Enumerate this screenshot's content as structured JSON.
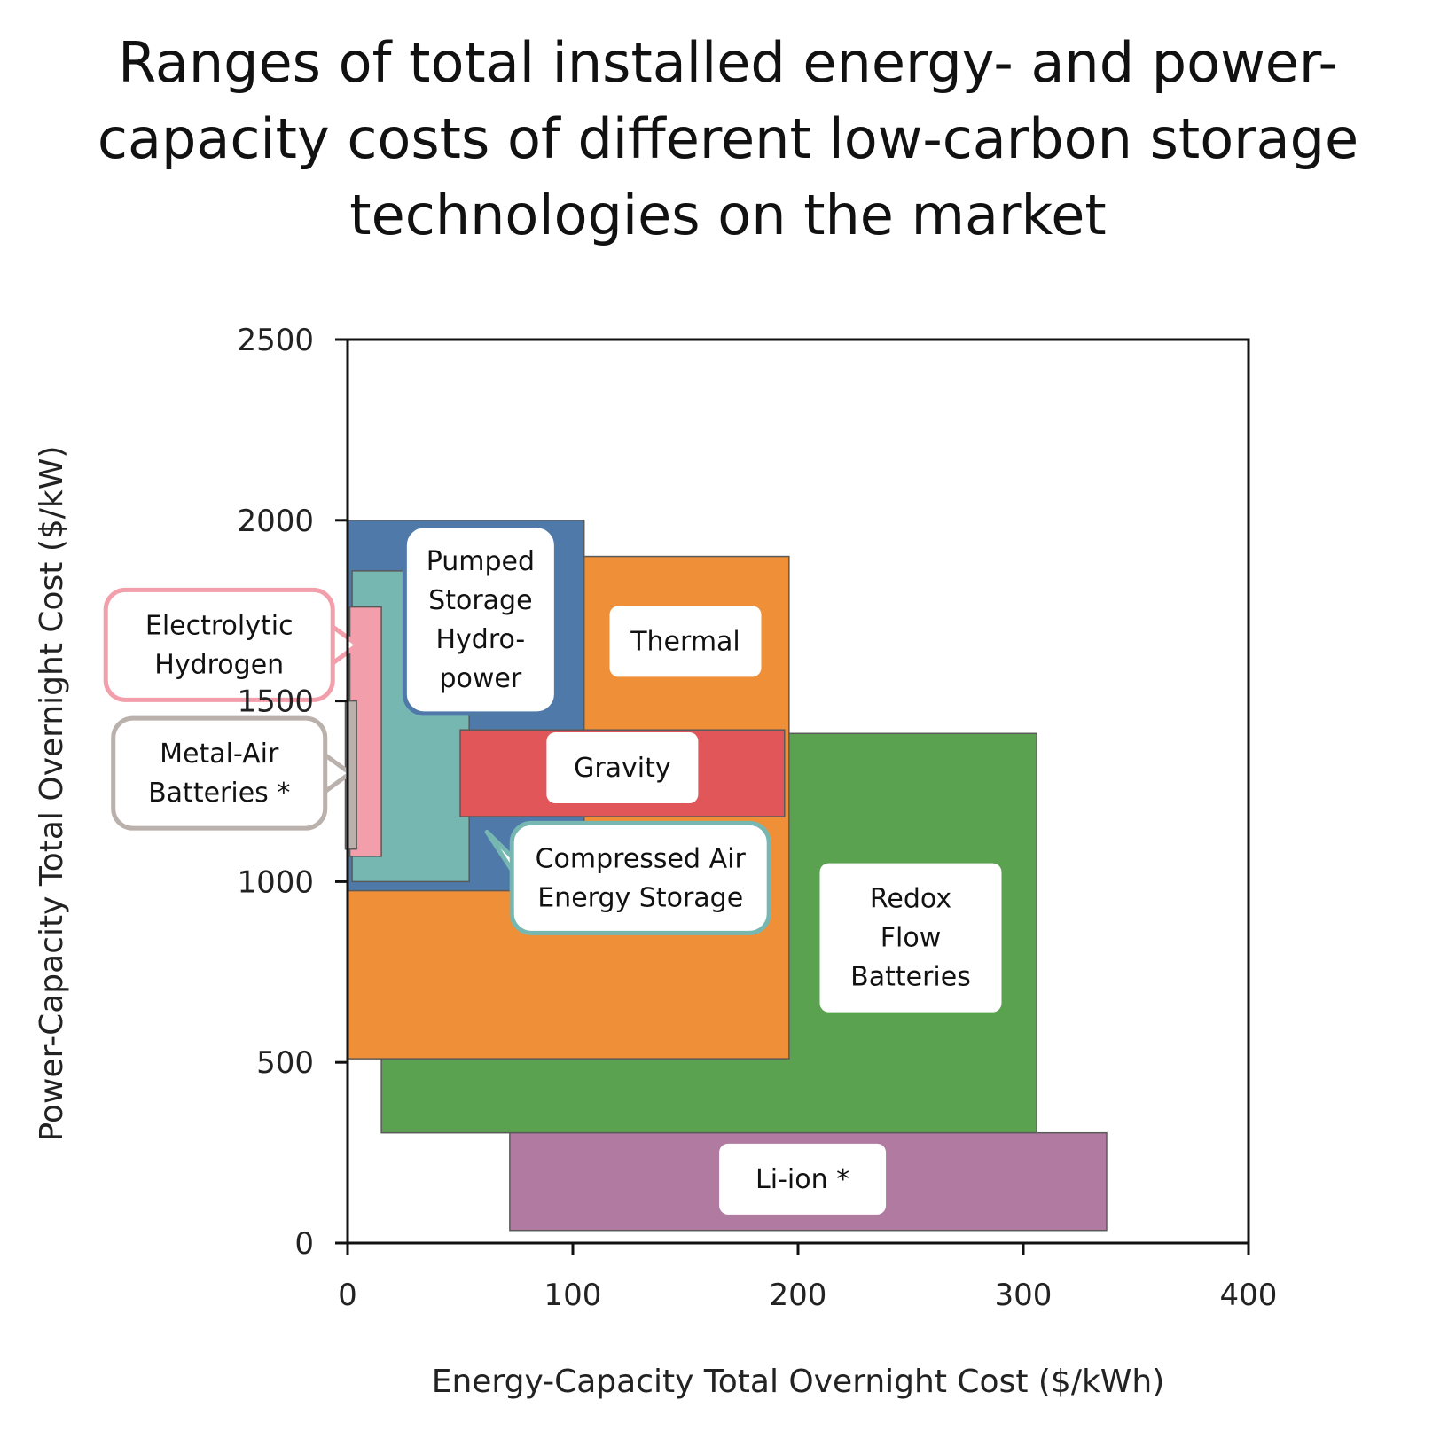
{
  "title_lines": [
    "Ranges of total installed energy- and power-",
    "capacity costs of different low-carbon storage",
    "technologies on the market"
  ],
  "chart_data": {
    "type": "range-box",
    "title": "Ranges of total installed energy- and power-capacity costs of different low-carbon storage technologies on the market",
    "xlabel": "Energy-Capacity Total Overnight Cost ($/kWh)",
    "ylabel": "Power-Capacity Total Overnight Cost ($/kW)",
    "xlim": [
      0,
      400
    ],
    "ylim": [
      0,
      2500
    ],
    "xticks": [
      0,
      100,
      200,
      300,
      400
    ],
    "yticks": [
      0,
      500,
      1000,
      1500,
      2000,
      2500
    ],
    "grid": false,
    "series": [
      {
        "name": "Redox Flow Batteries",
        "label_lines": [
          "Redox",
          "Flow",
          "Batteries"
        ],
        "x": [
          15,
          306
        ],
        "y": [
          305,
          1410
        ],
        "color": "#5aa150",
        "label_pos": [
          250,
          845
        ]
      },
      {
        "name": "Thermal",
        "label_lines": [
          "Thermal"
        ],
        "x": [
          0,
          196
        ],
        "y": [
          510,
          1900
        ],
        "color": "#ef8f38",
        "label_pos": [
          150,
          1665
        ]
      },
      {
        "name": "Pumped Storage Hydropower",
        "label_lines": [
          "Pumped",
          "Storage",
          "Hydro-",
          "power"
        ],
        "x": [
          0,
          105
        ],
        "y": [
          975,
          2000
        ],
        "color": "#4f79a9",
        "label_pos": [
          59,
          1725
        ]
      },
      {
        "name": "Compressed Air Energy Storage",
        "label_lines": [
          "Compressed Air",
          "Energy Storage"
        ],
        "x": [
          2,
          54
        ],
        "y": [
          1000,
          1860
        ],
        "color": "#76b7b2",
        "label_pos": [
          130,
          1010
        ]
      },
      {
        "name": "Gravity",
        "label_lines": [
          "Gravity"
        ],
        "x": [
          50,
          194
        ],
        "y": [
          1180,
          1420
        ],
        "color": "#e15759",
        "label_pos": [
          122,
          1315
        ]
      },
      {
        "name": "Electrolytic Hydrogen",
        "label_lines": [
          "Electrolytic",
          "Hydrogen"
        ],
        "x": [
          1,
          15
        ],
        "y": [
          1070,
          1760
        ],
        "color": "#f29eab",
        "label_pos": [
          -57,
          1655
        ]
      },
      {
        "name": "Metal-Air Batteries *",
        "label_lines": [
          "Metal-Air",
          "Batteries *"
        ],
        "x": [
          -1,
          4
        ],
        "y": [
          1090,
          1500
        ],
        "color": "#bab0ac",
        "label_pos": [
          -57,
          1300
        ]
      },
      {
        "name": "Li-ion *",
        "label_lines": [
          "Li-ion *"
        ],
        "x": [
          72,
          337
        ],
        "y": [
          35,
          305
        ],
        "color": "#b07aa1",
        "label_pos": [
          202,
          177
        ]
      }
    ]
  }
}
